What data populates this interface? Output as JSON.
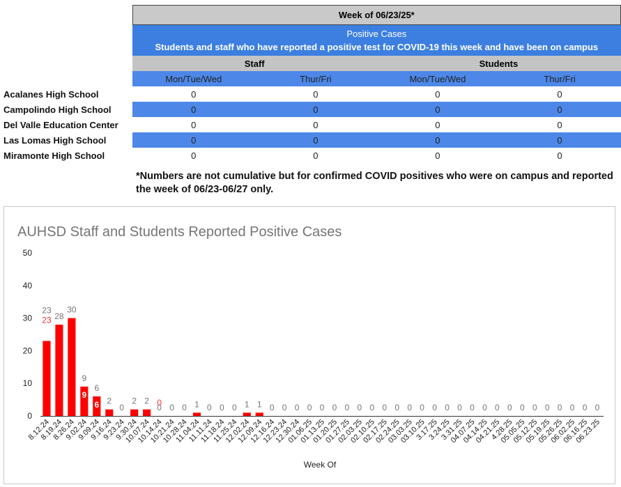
{
  "table": {
    "week_title": "Week of 06/23/25*",
    "positive_title": "Positive Cases",
    "subtitle": "Students and staff who have reported a positive test for COVID-19 this week and have been on campus",
    "groups": [
      "Staff",
      "Students"
    ],
    "day_headers": [
      "Mon/Tue/Wed",
      "Thur/Fri",
      "Mon/Tue/Wed",
      "Thur/Fri"
    ],
    "rows": [
      {
        "school": "Acalanes High School",
        "values": [
          "0",
          "0",
          "0",
          "0"
        ]
      },
      {
        "school": "Campolindo High School",
        "values": [
          "0",
          "0",
          "0",
          "0"
        ]
      },
      {
        "school": "Del Valle Education Center",
        "values": [
          "0",
          "0",
          "0",
          "0"
        ]
      },
      {
        "school": "Las Lomas High School",
        "values": [
          "0",
          "0",
          "0",
          "0"
        ]
      },
      {
        "school": "Miramonte High School",
        "values": [
          "0",
          "0",
          "0",
          "0"
        ]
      }
    ]
  },
  "footnote": "*Numbers are not cumulative but for confirmed COVID positives who were on campus and reported the week of 06/23-06/27 only.",
  "colors": {
    "bar": "#ff0000",
    "header_blue": "#3c7fe0",
    "header_gray": "#c9c9c9"
  },
  "chart_data": {
    "type": "bar",
    "title": "AUHSD Staff and Students Reported Positive Cases",
    "xlabel": "Week Of",
    "ylabel": "",
    "ylim": [
      0,
      50
    ],
    "yticks": [
      0,
      10,
      20,
      30,
      40,
      50
    ],
    "grid": false,
    "legend": "none",
    "categories": [
      "8.12.24",
      "8.19.24",
      "8.26.24",
      "9.02.24",
      "9.09.24",
      "9.16.24",
      "9.23.24",
      "9.30.24",
      "10.07.24",
      "10.14.24",
      "10.21.24",
      "10.28.24",
      "11.04.24",
      "11.11.24",
      "11.18.24",
      "11.25.24",
      "12.02.24",
      "12.09.24",
      "12.16.24",
      "12.23.24",
      "12.30.24",
      "01.06.25",
      "01.13.25",
      "01.20.25",
      "01.27.25",
      "02.03.25",
      "02.10.25",
      "02.17.25",
      "02.24.25",
      "03.03.25",
      "03.10.25",
      "3.17.25",
      "3.24.25",
      "3.31.25",
      "04.07.25",
      "04.14.25",
      "04.21.25",
      "4.28.25",
      "05.05.25",
      "05.12.25",
      "05.19.25",
      "05.26.25",
      "06.02.25",
      "06.16.25",
      "06.23.25"
    ],
    "values": [
      23,
      28,
      30,
      9,
      6,
      2,
      0,
      2,
      2,
      0,
      0,
      0,
      1,
      0,
      0,
      0,
      1,
      1,
      0,
      0,
      0,
      0,
      0,
      0,
      0,
      0,
      0,
      0,
      0,
      0,
      0,
      0,
      0,
      0,
      0,
      0,
      0,
      0,
      0,
      0,
      0,
      0,
      0,
      0,
      0
    ],
    "annotations": [
      {
        "category": "8.12.24",
        "text": "23"
      },
      {
        "category": "9.02.24",
        "text": "9"
      },
      {
        "category": "9.09.24",
        "text": "6"
      },
      {
        "category": "10.14.24",
        "text": "0"
      }
    ]
  }
}
